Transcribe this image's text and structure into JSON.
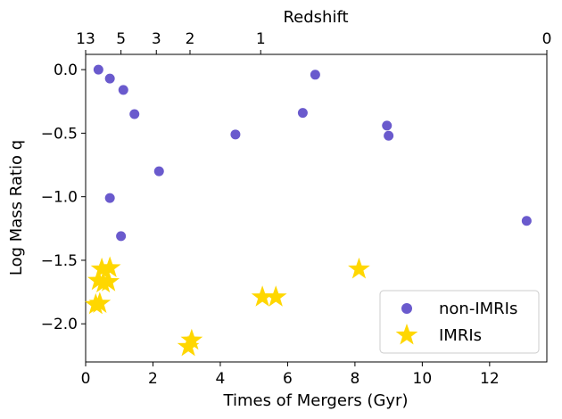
{
  "chart_data": {
    "type": "scatter",
    "xlabel": "Times of Mergers (Gyr)",
    "ylabel": "Log Mass Ratio q",
    "top_xlabel": "Redshift",
    "xlim": [
      0,
      13.7
    ],
    "ylim": [
      -2.3,
      0.12
    ],
    "x_ticks": [
      0,
      2,
      4,
      6,
      8,
      10,
      12
    ],
    "x_tick_labels": [
      "0",
      "2",
      "4",
      "6",
      "8",
      "10",
      "12"
    ],
    "y_ticks": [
      0.0,
      -0.5,
      -1.0,
      -1.5,
      -2.0
    ],
    "y_tick_labels": [
      "0.0",
      "−0.5",
      "−1.0",
      "−1.5",
      "−2.0"
    ],
    "top_ticks": [
      {
        "label": "13",
        "time_gyr": 0.0
      },
      {
        "label": "5",
        "time_gyr": 1.05
      },
      {
        "label": "3",
        "time_gyr": 2.1
      },
      {
        "label": "2",
        "time_gyr": 3.1
      },
      {
        "label": "1",
        "time_gyr": 5.2
      },
      {
        "label": "0",
        "time_gyr": 13.7
      }
    ],
    "legend_position": "lower-right",
    "grid": false,
    "series": [
      {
        "name": "non-IMRIs",
        "marker": "circle",
        "color": "#6a5acd",
        "points": [
          [
            0.38,
            0.0
          ],
          [
            0.72,
            -0.07
          ],
          [
            1.12,
            -0.16
          ],
          [
            1.45,
            -0.35
          ],
          [
            2.18,
            -0.8
          ],
          [
            0.72,
            -1.01
          ],
          [
            1.05,
            -1.31
          ],
          [
            4.45,
            -0.51
          ],
          [
            6.45,
            -0.34
          ],
          [
            6.82,
            -0.04
          ],
          [
            8.95,
            -0.44
          ],
          [
            9.0,
            -0.52
          ],
          [
            13.1,
            -1.19
          ]
        ]
      },
      {
        "name": "IMRIs",
        "marker": "star",
        "color": "#ffd700",
        "points": [
          [
            0.48,
            -1.57
          ],
          [
            0.72,
            -1.56
          ],
          [
            0.38,
            -1.66
          ],
          [
            0.52,
            -1.68
          ],
          [
            0.68,
            -1.67
          ],
          [
            0.3,
            -1.85
          ],
          [
            0.42,
            -1.84
          ],
          [
            3.15,
            -2.13
          ],
          [
            3.05,
            -2.18
          ],
          [
            5.25,
            -1.79
          ],
          [
            5.65,
            -1.79
          ],
          [
            8.12,
            -1.57
          ]
        ]
      }
    ]
  }
}
